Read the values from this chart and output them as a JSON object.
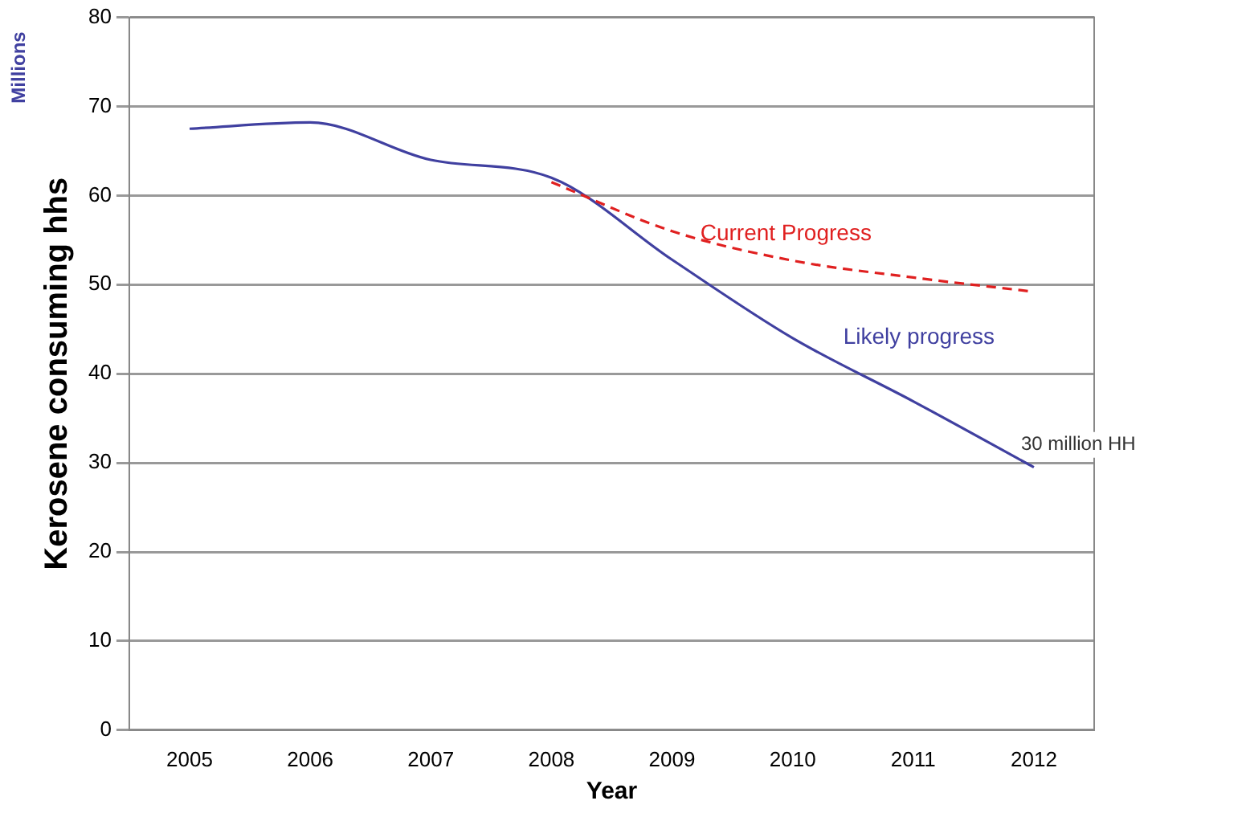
{
  "chart_data": {
    "type": "line",
    "ylabel": "Kerosene consuming hhs",
    "xlabel": "Year",
    "categories": [
      "2005",
      "2006",
      "2007",
      "2008",
      "2009",
      "2010",
      "2011",
      "2012"
    ],
    "series": [
      {
        "name": "Current Progress",
        "color": "#e02020",
        "line_style": "dashed",
        "values": [
          null,
          null,
          null,
          61.5,
          56,
          52.7,
          50.8,
          49.2
        ]
      },
      {
        "name": "Likely progress",
        "color": "#4040a0",
        "line_style": "solid",
        "values": [
          67.5,
          68.2,
          64,
          62,
          52.8,
          44,
          36.9,
          29.5
        ]
      }
    ],
    "ylim": [
      0,
      80
    ],
    "yticks": [
      0,
      10,
      20,
      30,
      40,
      50,
      60,
      70,
      80
    ],
    "grid": "y",
    "legend": false,
    "marker": "none",
    "annotations": [
      "Millions",
      {
        "text": "30 million HH",
        "x": "2012",
        "y": 29.5
      }
    ]
  }
}
